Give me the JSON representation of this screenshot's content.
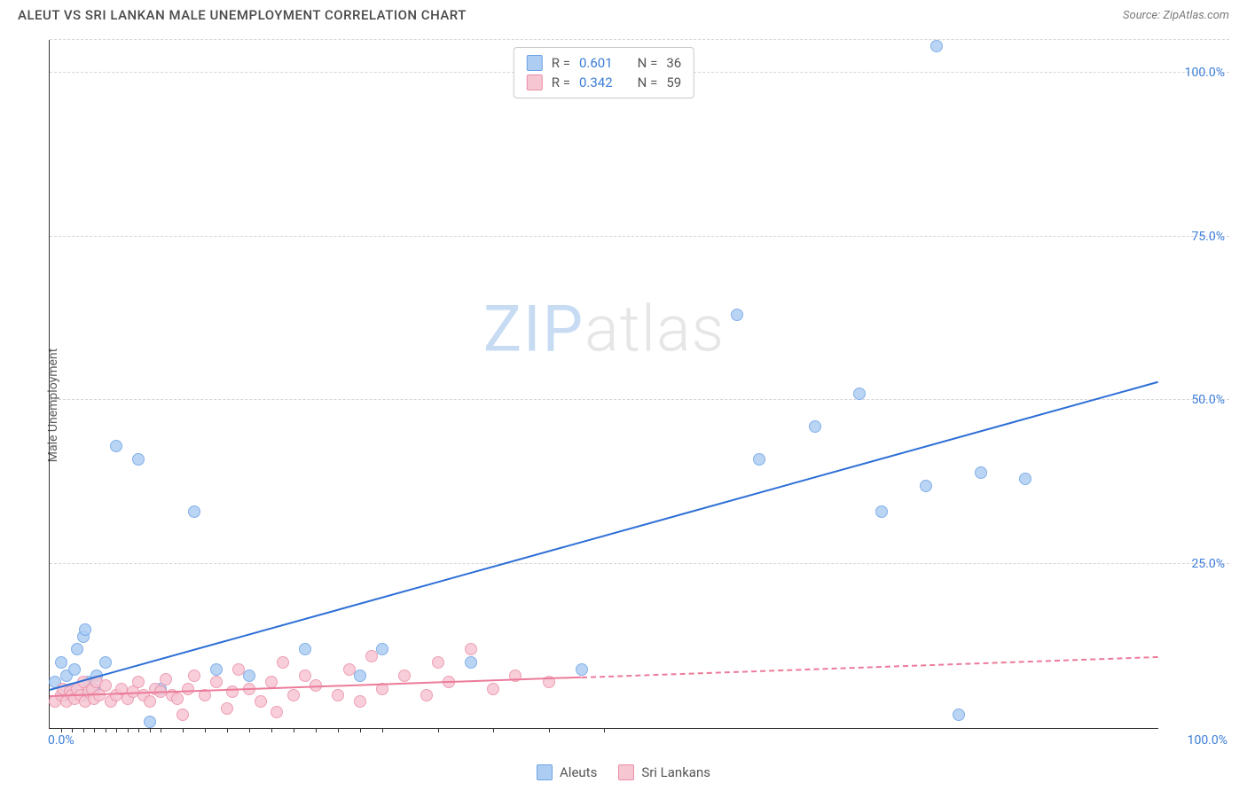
{
  "header": {
    "title": "ALEUT VS SRI LANKAN MALE UNEMPLOYMENT CORRELATION CHART",
    "source": "Source: ZipAtlas.com"
  },
  "chart": {
    "type": "scatter",
    "y_axis_label": "Male Unemployment",
    "background_color": "#ffffff",
    "grid_color": "#d5d5d5",
    "axis_color": "#333333",
    "xlim": [
      0,
      100
    ],
    "ylim": [
      0,
      105
    ],
    "x_ticks": {
      "label_0": "0.0%",
      "label_100": "100.0%",
      "minor_positions": [
        1,
        2,
        3,
        4,
        5,
        6,
        7,
        8,
        9,
        10,
        12,
        14,
        16,
        18,
        20,
        22,
        24,
        26,
        28,
        30,
        35,
        40,
        45,
        50
      ]
    },
    "y_ticks": [
      {
        "value": 25,
        "label": "25.0%"
      },
      {
        "value": 50,
        "label": "50.0%"
      },
      {
        "value": 75,
        "label": "75.0%"
      },
      {
        "value": 100,
        "label": "100.0%"
      },
      {
        "value": 105,
        "label": ""
      }
    ],
    "watermark": {
      "zip": "ZIP",
      "atlas": "atlas"
    },
    "series": [
      {
        "name": "Aleuts",
        "fill_color": "#aecdf3",
        "stroke_color": "#6da3e6",
        "marker_size": 14,
        "r_value": "0.601",
        "n_value": "36",
        "trend": {
          "color": "#2d6fd6",
          "x1": 0,
          "y1": 6,
          "x2": 100,
          "y2": 53,
          "solid_until_x": 100
        },
        "points": [
          {
            "x": 0.5,
            "y": 7
          },
          {
            "x": 1,
            "y": 10
          },
          {
            "x": 1.2,
            "y": 5
          },
          {
            "x": 1.5,
            "y": 8
          },
          {
            "x": 2,
            "y": 6
          },
          {
            "x": 2.2,
            "y": 9
          },
          {
            "x": 2.5,
            "y": 12
          },
          {
            "x": 3,
            "y": 14
          },
          {
            "x": 3.2,
            "y": 15
          },
          {
            "x": 3.5,
            "y": 7
          },
          {
            "x": 4,
            "y": 6
          },
          {
            "x": 4.2,
            "y": 8
          },
          {
            "x": 5,
            "y": 10
          },
          {
            "x": 6,
            "y": 43
          },
          {
            "x": 8,
            "y": 41
          },
          {
            "x": 9,
            "y": 1
          },
          {
            "x": 10,
            "y": 6
          },
          {
            "x": 13,
            "y": 33
          },
          {
            "x": 15,
            "y": 9
          },
          {
            "x": 18,
            "y": 8
          },
          {
            "x": 23,
            "y": 12
          },
          {
            "x": 28,
            "y": 8
          },
          {
            "x": 30,
            "y": 12
          },
          {
            "x": 38,
            "y": 10
          },
          {
            "x": 48,
            "y": 9
          },
          {
            "x": 62,
            "y": 63
          },
          {
            "x": 64,
            "y": 41
          },
          {
            "x": 69,
            "y": 46
          },
          {
            "x": 73,
            "y": 51
          },
          {
            "x": 75,
            "y": 33
          },
          {
            "x": 79,
            "y": 37
          },
          {
            "x": 80,
            "y": 104
          },
          {
            "x": 82,
            "y": 2
          },
          {
            "x": 84,
            "y": 39
          },
          {
            "x": 88,
            "y": 38
          },
          {
            "x": 3,
            "y": 5
          }
        ]
      },
      {
        "name": "Sri Lankans",
        "fill_color": "#f6c6d3",
        "stroke_color": "#ec8fa8",
        "marker_size": 14,
        "r_value": "0.342",
        "n_value": "59",
        "trend": {
          "color": "#ec7b9a",
          "x1": 0,
          "y1": 5,
          "x2": 100,
          "y2": 11,
          "solid_until_x": 48
        },
        "points": [
          {
            "x": 0.5,
            "y": 4
          },
          {
            "x": 1,
            "y": 5
          },
          {
            "x": 1.2,
            "y": 6
          },
          {
            "x": 1.5,
            "y": 4
          },
          {
            "x": 1.8,
            "y": 5.5
          },
          {
            "x": 2,
            "y": 5
          },
          {
            "x": 2.2,
            "y": 4.5
          },
          {
            "x": 2.5,
            "y": 6
          },
          {
            "x": 2.8,
            "y": 5
          },
          {
            "x": 3,
            "y": 7
          },
          {
            "x": 3.2,
            "y": 4
          },
          {
            "x": 3.5,
            "y": 5.5
          },
          {
            "x": 3.8,
            "y": 6
          },
          {
            "x": 4,
            "y": 4.5
          },
          {
            "x": 4.2,
            "y": 7
          },
          {
            "x": 4.5,
            "y": 5
          },
          {
            "x": 5,
            "y": 6.5
          },
          {
            "x": 5.5,
            "y": 4
          },
          {
            "x": 6,
            "y": 5
          },
          {
            "x": 6.5,
            "y": 6
          },
          {
            "x": 7,
            "y": 4.5
          },
          {
            "x": 7.5,
            "y": 5.5
          },
          {
            "x": 8,
            "y": 7
          },
          {
            "x": 8.5,
            "y": 5
          },
          {
            "x": 9,
            "y": 4
          },
          {
            "x": 9.5,
            "y": 6
          },
          {
            "x": 10,
            "y": 5.5
          },
          {
            "x": 10.5,
            "y": 7.5
          },
          {
            "x": 11,
            "y": 5
          },
          {
            "x": 11.5,
            "y": 4.5
          },
          {
            "x": 12,
            "y": 2
          },
          {
            "x": 12.5,
            "y": 6
          },
          {
            "x": 13,
            "y": 8
          },
          {
            "x": 14,
            "y": 5
          },
          {
            "x": 15,
            "y": 7
          },
          {
            "x": 16,
            "y": 3
          },
          {
            "x": 16.5,
            "y": 5.5
          },
          {
            "x": 17,
            "y": 9
          },
          {
            "x": 18,
            "y": 6
          },
          {
            "x": 19,
            "y": 4
          },
          {
            "x": 20,
            "y": 7
          },
          {
            "x": 20.5,
            "y": 2.5
          },
          {
            "x": 21,
            "y": 10
          },
          {
            "x": 22,
            "y": 5
          },
          {
            "x": 23,
            "y": 8
          },
          {
            "x": 24,
            "y": 6.5
          },
          {
            "x": 26,
            "y": 5
          },
          {
            "x": 27,
            "y": 9
          },
          {
            "x": 28,
            "y": 4
          },
          {
            "x": 29,
            "y": 11
          },
          {
            "x": 30,
            "y": 6
          },
          {
            "x": 32,
            "y": 8
          },
          {
            "x": 34,
            "y": 5
          },
          {
            "x": 35,
            "y": 10
          },
          {
            "x": 36,
            "y": 7
          },
          {
            "x": 38,
            "y": 12
          },
          {
            "x": 40,
            "y": 6
          },
          {
            "x": 42,
            "y": 8
          },
          {
            "x": 45,
            "y": 7
          }
        ]
      }
    ],
    "legend_top": {
      "r_label": "R =",
      "n_label": "N ="
    },
    "legend_bottom_labels": {
      "aleuts": "Aleuts",
      "srilankans": "Sri Lankans"
    }
  }
}
